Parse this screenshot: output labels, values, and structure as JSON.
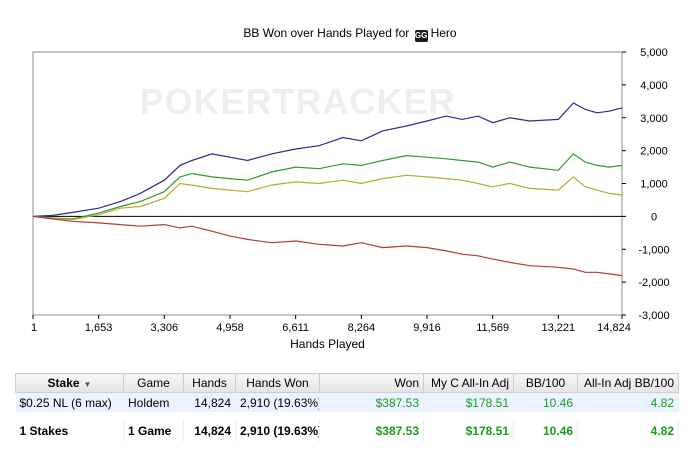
{
  "chart_data": {
    "type": "line",
    "title_prefix": "BB Won over Hands Played for",
    "title_site_icon": "gg-logo-icon",
    "title_player": "Hero",
    "watermark": "POKERTRACKER",
    "xlabel": "Hands Played",
    "xlim": [
      1,
      14824
    ],
    "ylim": [
      -3000,
      5000
    ],
    "x_ticks": [
      1,
      1653,
      3306,
      4958,
      6611,
      8264,
      9916,
      11569,
      13221,
      14824
    ],
    "x_tick_labels": [
      "1",
      "1,653",
      "3,306",
      "4,958",
      "6,611",
      "8,264",
      "9,916",
      "11,569",
      "13,221",
      "14,824"
    ],
    "y_ticks": [
      -3000,
      -2000,
      -1000,
      0,
      1000,
      2000,
      3000,
      4000,
      5000
    ],
    "y_tick_labels": [
      "-3,000",
      "-2,000",
      "-1,000",
      "0",
      "1,000",
      "2,000",
      "3,000",
      "4,000",
      "5,000"
    ],
    "y_axis_side": "right",
    "grid": false,
    "series": [
      {
        "color": "#2b2b8f",
        "x": [
          1,
          500,
          1000,
          1653,
          2200,
          2700,
          3306,
          3700,
          4000,
          4500,
          4958,
          5400,
          6000,
          6611,
          7200,
          7800,
          8264,
          8800,
          9400,
          9916,
          10400,
          10800,
          11200,
          11569,
          12000,
          12500,
          13221,
          13600,
          13900,
          14200,
          14500,
          14824
        ],
        "y": [
          0,
          30,
          120,
          250,
          450,
          700,
          1100,
          1550,
          1700,
          1900,
          1800,
          1700,
          1900,
          2050,
          2150,
          2400,
          2300,
          2600,
          2750,
          2900,
          3050,
          2950,
          3050,
          2850,
          3000,
          2900,
          2950,
          3450,
          3250,
          3150,
          3200,
          3300
        ]
      },
      {
        "color": "#2e9b2e",
        "x": [
          1,
          500,
          1000,
          1653,
          2200,
          2700,
          3306,
          3700,
          4000,
          4500,
          4958,
          5400,
          6000,
          6611,
          7200,
          7800,
          8264,
          8800,
          9400,
          9916,
          10400,
          10800,
          11200,
          11569,
          12000,
          12500,
          13221,
          13600,
          13900,
          14200,
          14500,
          14824
        ],
        "y": [
          0,
          -50,
          -80,
          100,
          300,
          450,
          750,
          1200,
          1300,
          1200,
          1150,
          1100,
          1350,
          1500,
          1450,
          1600,
          1550,
          1700,
          1850,
          1800,
          1750,
          1700,
          1650,
          1500,
          1650,
          1500,
          1400,
          1900,
          1650,
          1550,
          1500,
          1550
        ]
      },
      {
        "color": "#b4ad2e",
        "x": [
          1,
          500,
          1000,
          1653,
          2200,
          2700,
          3306,
          3700,
          4000,
          4500,
          4958,
          5400,
          6000,
          6611,
          7200,
          7800,
          8264,
          8800,
          9400,
          9916,
          10400,
          10800,
          11200,
          11569,
          12000,
          12500,
          13221,
          13600,
          13900,
          14200,
          14500,
          14824
        ],
        "y": [
          0,
          -60,
          -100,
          50,
          250,
          300,
          550,
          1000,
          950,
          850,
          800,
          750,
          950,
          1050,
          1000,
          1100,
          1000,
          1150,
          1250,
          1200,
          1150,
          1100,
          1000,
          900,
          1000,
          850,
          800,
          1200,
          900,
          800,
          700,
          650
        ]
      },
      {
        "color": "#b23a3a",
        "x": [
          1,
          500,
          1000,
          1653,
          2200,
          2700,
          3306,
          3700,
          4000,
          4500,
          4958,
          5400,
          6000,
          6611,
          7200,
          7800,
          8264,
          8800,
          9400,
          9916,
          10400,
          10800,
          11200,
          11569,
          12000,
          12500,
          13221,
          13600,
          13900,
          14200,
          14500,
          14824
        ],
        "y": [
          0,
          -80,
          -150,
          -200,
          -250,
          -300,
          -250,
          -350,
          -300,
          -450,
          -600,
          -700,
          -800,
          -750,
          -850,
          -900,
          -800,
          -950,
          -900,
          -950,
          -1050,
          -1150,
          -1200,
          -1300,
          -1400,
          -1500,
          -1550,
          -1600,
          -1700,
          -1700,
          -1750,
          -1800
        ]
      }
    ]
  },
  "table": {
    "headers": [
      "Stake",
      "Game",
      "Hands",
      "Hands Won",
      "Won",
      "My C All-In Adj",
      "BB/100",
      "All-In Adj BB/100"
    ],
    "rows": [
      [
        "$0.25 NL (6 max)",
        "Holdem",
        "14,824",
        "2,910 (19.63%)",
        "$387.53",
        "$178.51",
        "10.46",
        "4.82"
      ]
    ],
    "totals": [
      "1 Stakes",
      "1 Game",
      "14,824",
      "2,910 (19.63%)",
      "$387.53",
      "$178.51",
      "10.46",
      "4.82"
    ]
  }
}
